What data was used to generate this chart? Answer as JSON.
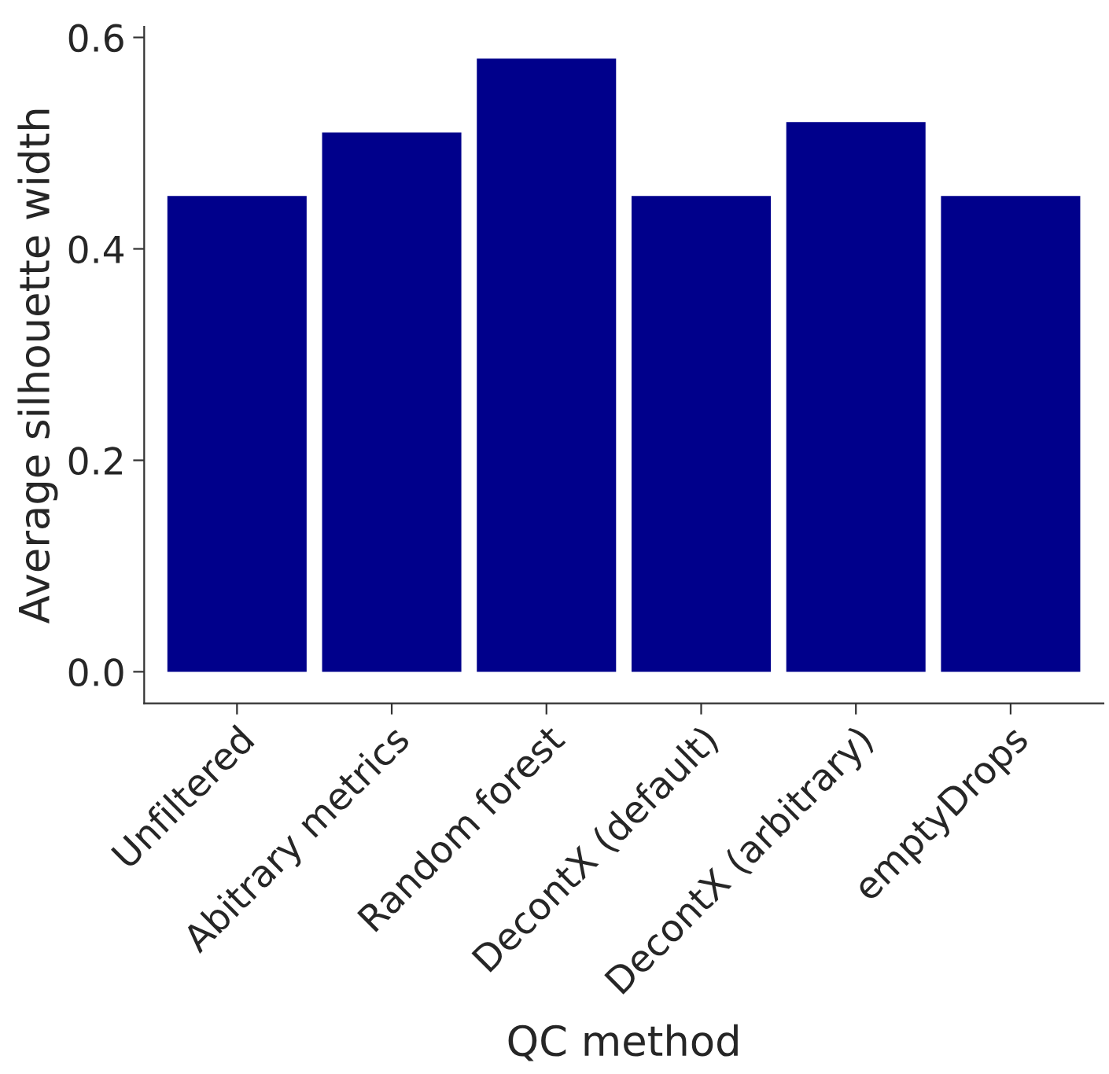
{
  "chart_data": {
    "type": "bar",
    "xlabel": "QC method",
    "ylabel": "Average silhouette width",
    "categories": [
      "Unfiltered",
      "Abitrary metrics",
      "Random forest",
      "DecontX (default)",
      "DecontX (arbitrary)",
      "emptyDrops"
    ],
    "values": [
      0.45,
      0.51,
      0.58,
      0.45,
      0.52,
      0.45
    ],
    "color": "#00008b",
    "ylim": [
      -0.03,
      0.61
    ],
    "yticks": [
      {
        "value": 0,
        "label": "0.0"
      },
      0.2,
      0.4,
      0.6
    ],
    "grid": false,
    "legend": false
  }
}
